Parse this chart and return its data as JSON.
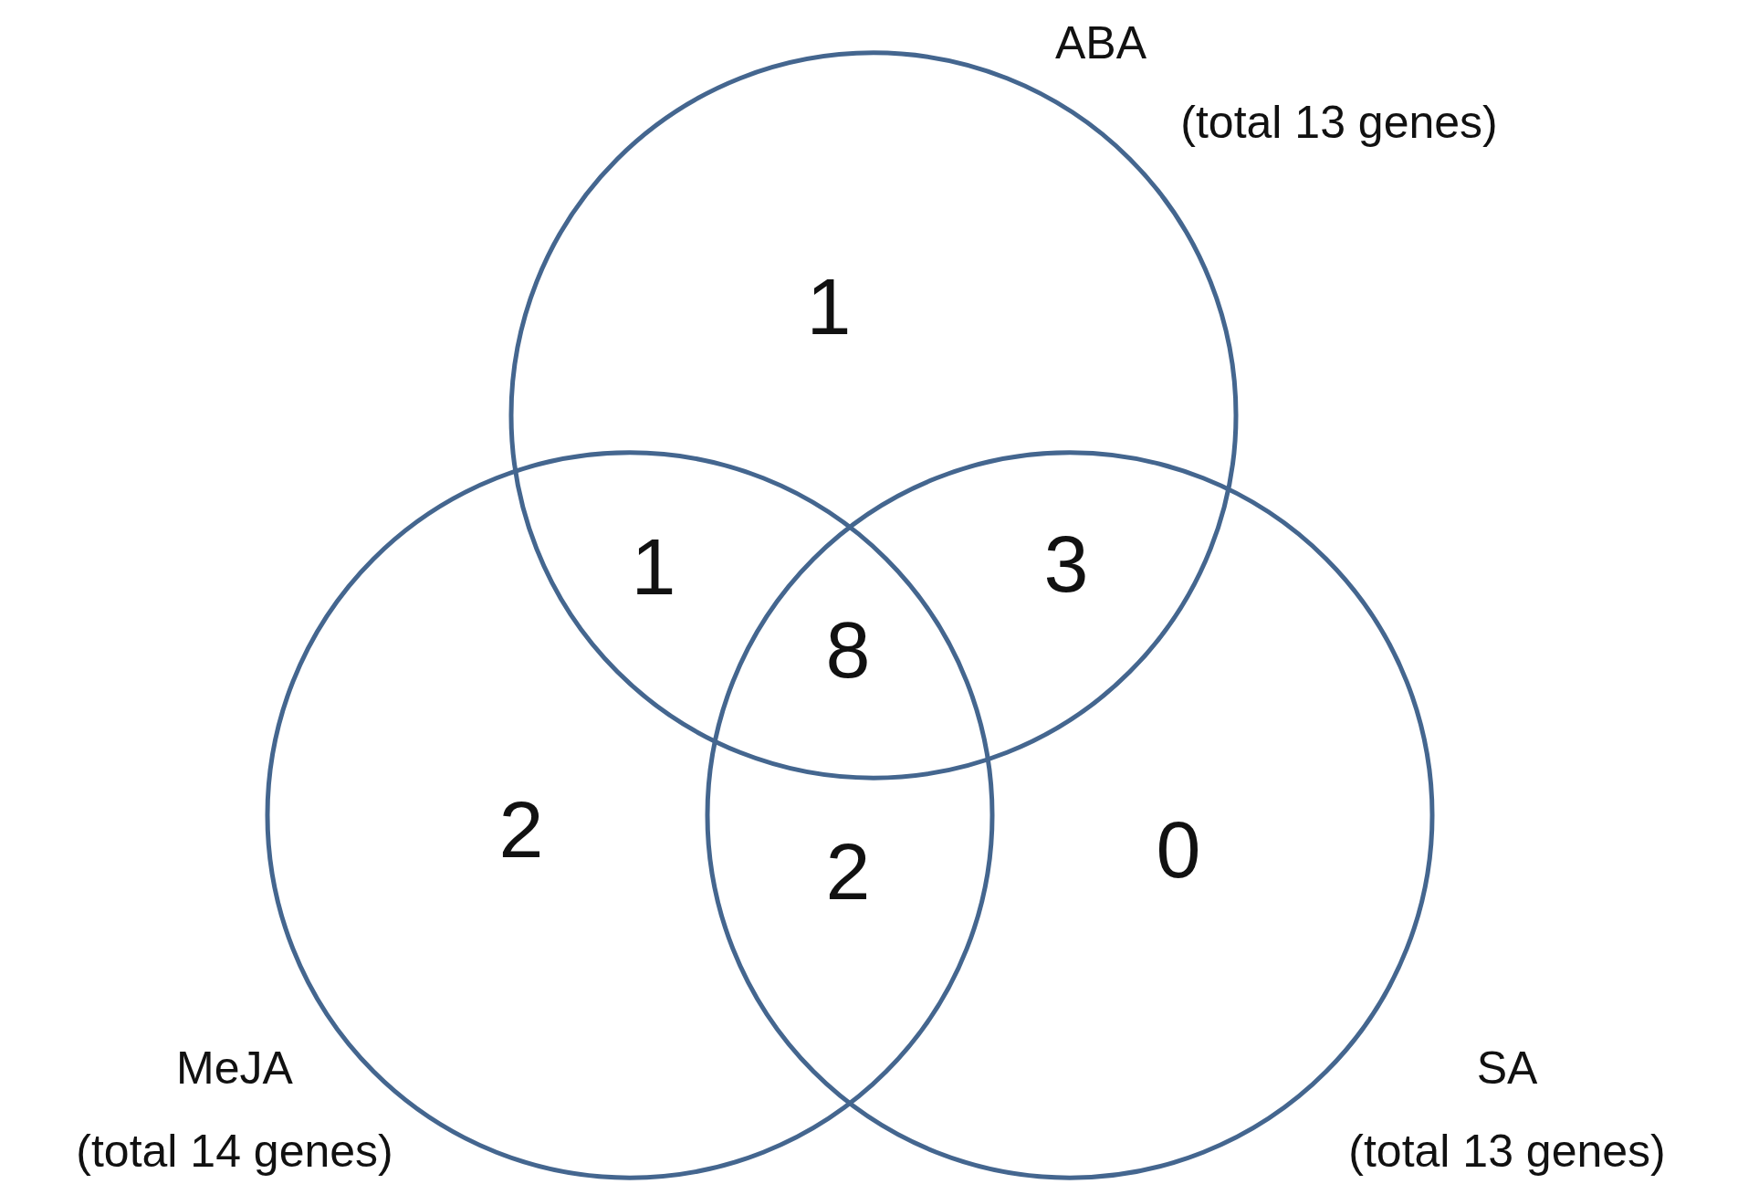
{
  "chart_data": {
    "type": "other",
    "categories": [
      null,
      null,
      null,
      null,
      null,
      null,
      null
    ],
    "values": [
      1,
      1,
      3,
      8,
      2,
      2,
      0
    ],
    "data_labels": true,
    "color": "#44668f",
    "annotations": [
      "ABA\n(total 13 genes)",
      "MeJA\n(total 14 genes)",
      "SA\n(total 13 genes)"
    ]
  }
}
